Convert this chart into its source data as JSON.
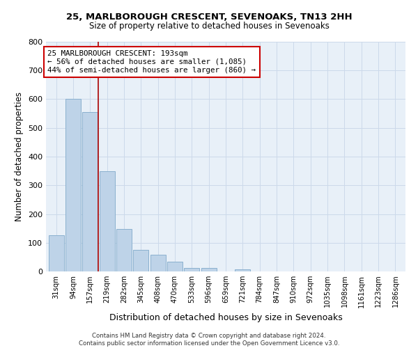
{
  "title1": "25, MARLBOROUGH CRESCENT, SEVENOAKS, TN13 2HH",
  "title2": "Size of property relative to detached houses in Sevenoaks",
  "xlabel": "Distribution of detached houses by size in Sevenoaks",
  "ylabel": "Number of detached properties",
  "categories": [
    "31sqm",
    "94sqm",
    "157sqm",
    "219sqm",
    "282sqm",
    "345sqm",
    "408sqm",
    "470sqm",
    "533sqm",
    "596sqm",
    "659sqm",
    "721sqm",
    "784sqm",
    "847sqm",
    "910sqm",
    "972sqm",
    "1035sqm",
    "1098sqm",
    "1161sqm",
    "1223sqm",
    "1286sqm"
  ],
  "values": [
    125,
    600,
    555,
    348,
    148,
    75,
    57,
    33,
    13,
    12,
    0,
    7,
    0,
    0,
    0,
    0,
    0,
    0,
    0,
    0,
    0
  ],
  "bar_color": "#bed3e8",
  "bar_edge_color": "#8ab0cf",
  "grid_color": "#ccd9ea",
  "background_color": "#e8f0f8",
  "annotation_text": "25 MARLBOROUGH CRESCENT: 193sqm\n← 56% of detached houses are smaller (1,085)\n44% of semi-detached houses are larger (860) →",
  "vline_x": 2.5,
  "vline_color": "#aa0000",
  "box_color": "#cc0000",
  "ylim": [
    0,
    800
  ],
  "yticks": [
    0,
    100,
    200,
    300,
    400,
    500,
    600,
    700,
    800
  ],
  "footer": "Contains HM Land Registry data © Crown copyright and database right 2024.\nContains public sector information licensed under the Open Government Licence v3.0."
}
